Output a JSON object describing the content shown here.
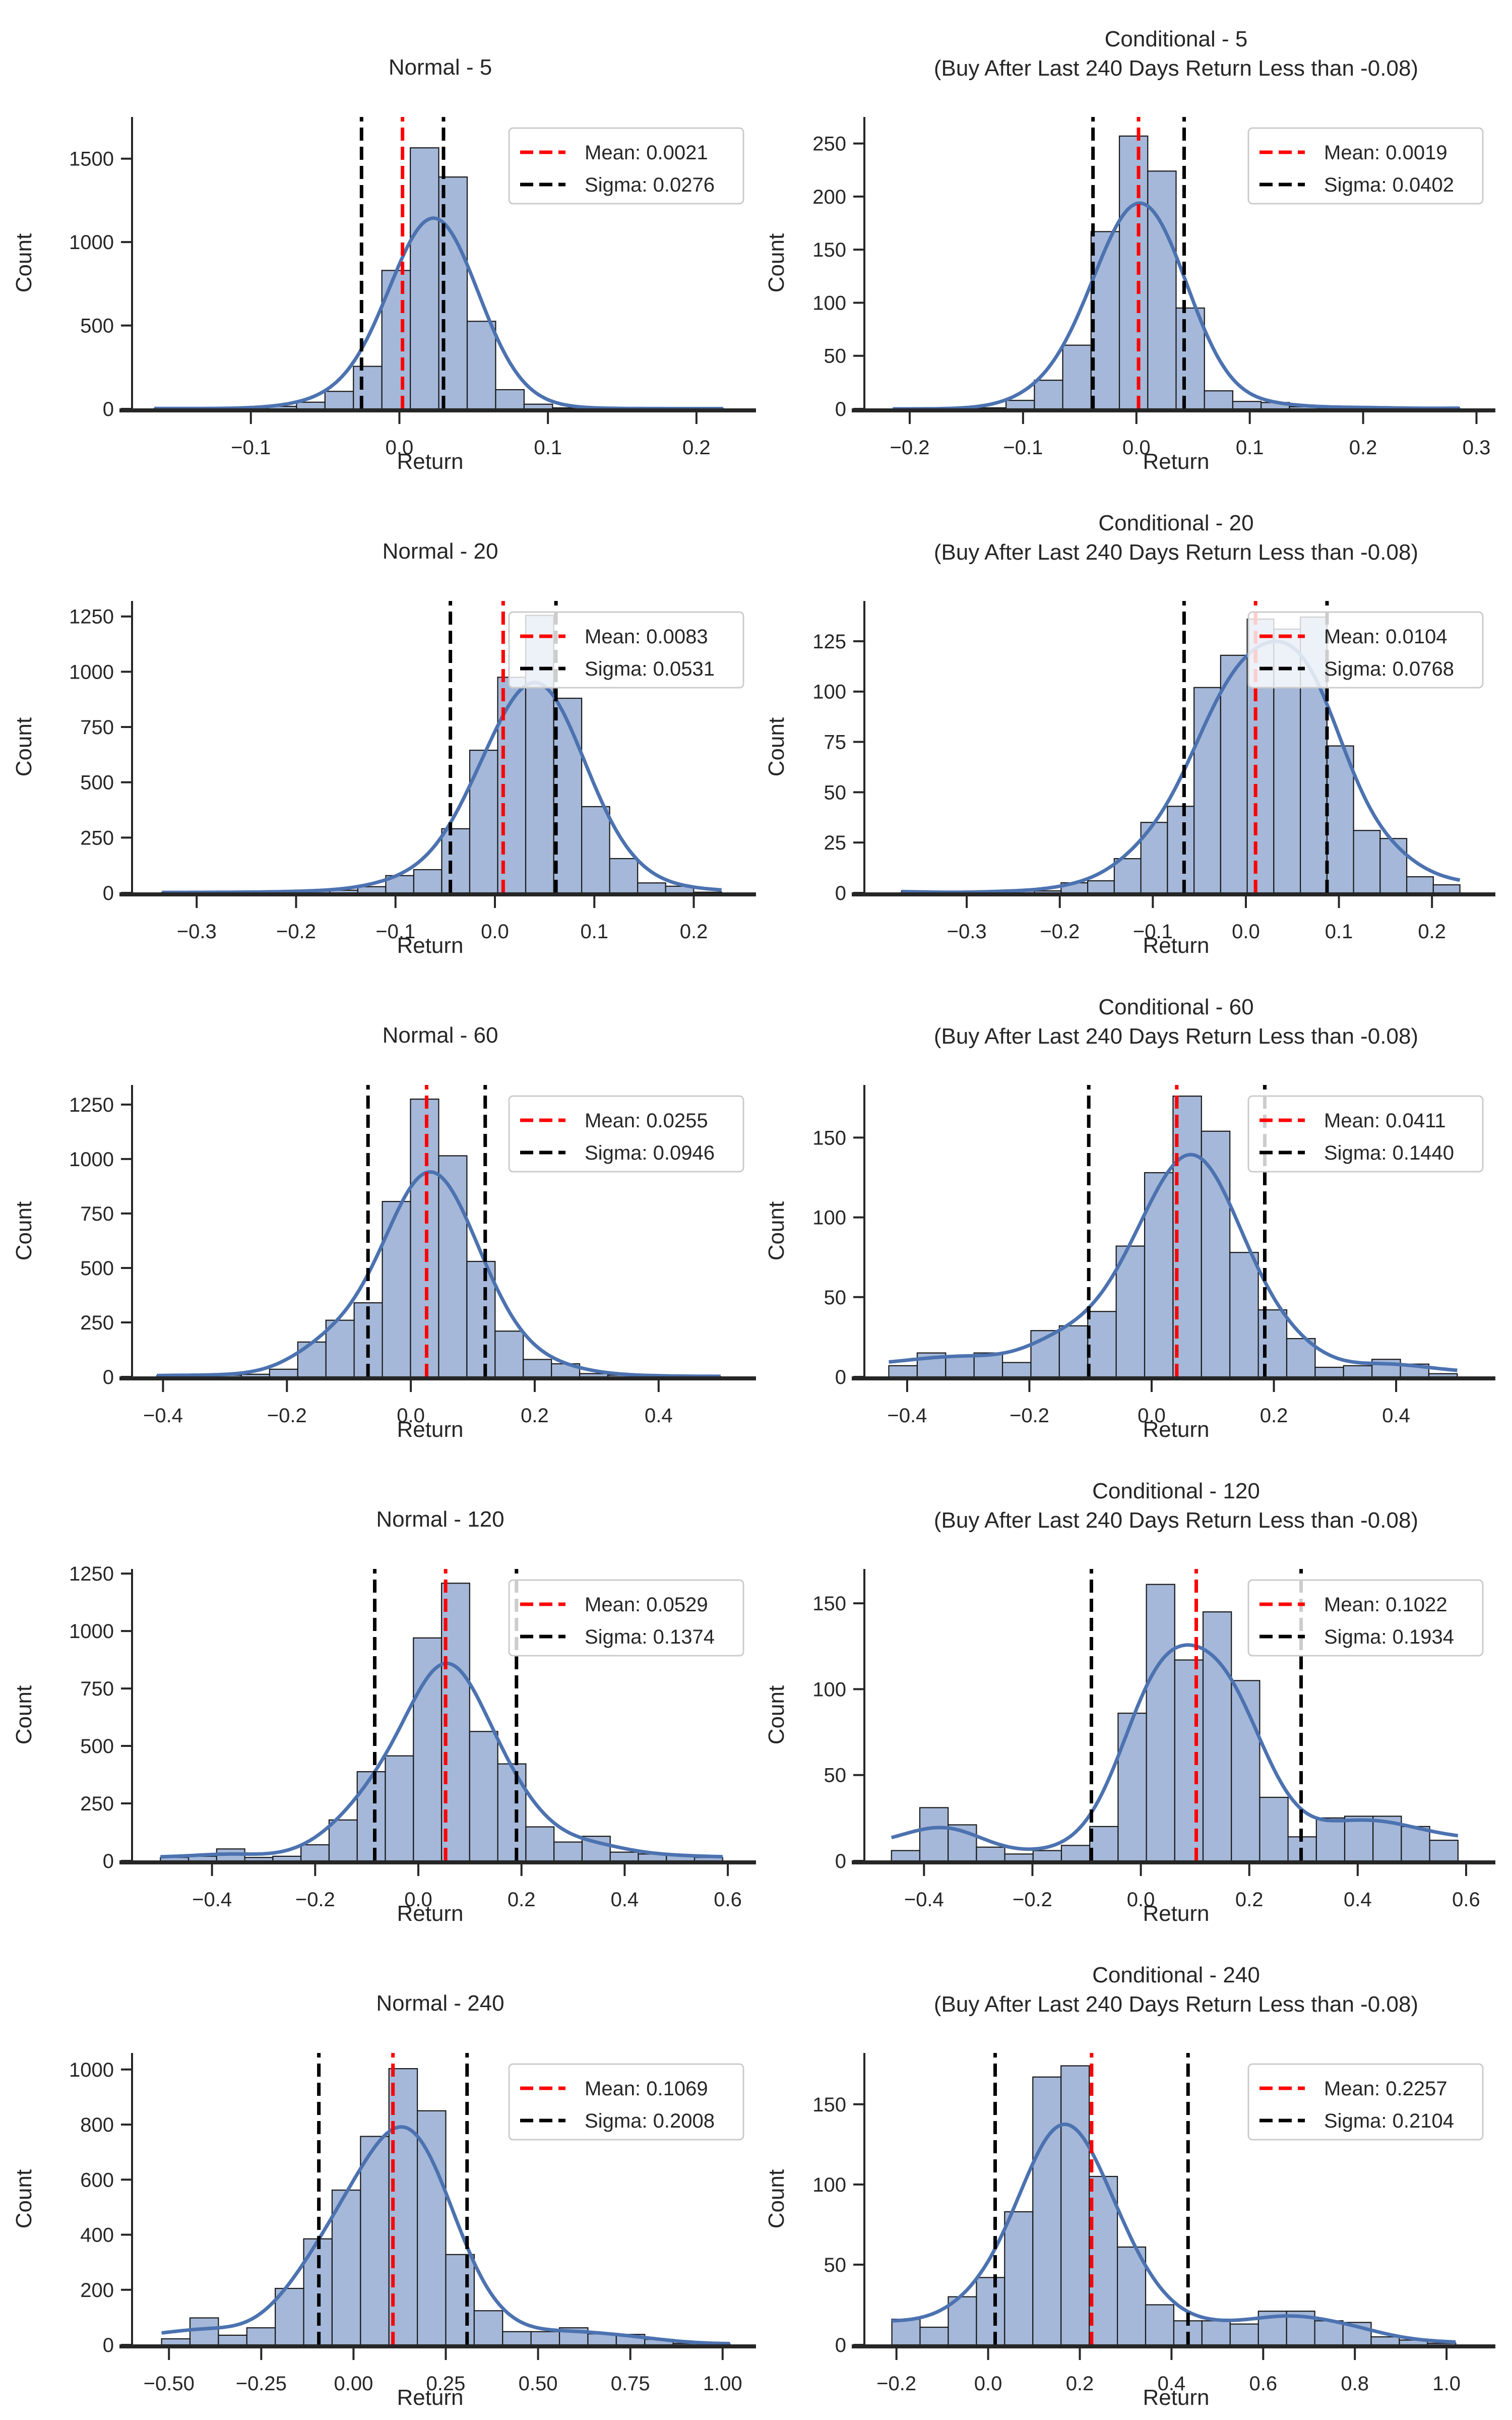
{
  "figure": {
    "colors": {
      "bar_fill": "#a5b8d9",
      "bar_edge": "#1a1a1a",
      "kde": "#4c72b0",
      "mean_line": "#ff0000",
      "sigma_line": "#000000",
      "axis": "#262626"
    }
  },
  "chart_data": [
    {
      "type": "bar",
      "title": "Normal - 5",
      "xlabel": "Return",
      "ylabel": "Count",
      "xlim": [
        -0.18,
        0.235
      ],
      "ylim": [
        0,
        1750
      ],
      "xticks": [
        -0.1,
        0.0,
        0.1,
        0.2
      ],
      "xtick_labels": [
        "−0.1",
        "0.0",
        "0.1",
        "0.2"
      ],
      "yticks": [
        0,
        500,
        1000,
        1500
      ],
      "ytick_labels": [
        "0",
        "500",
        "1000",
        "1500"
      ],
      "bin_range": [
        -0.165,
        0.218
      ],
      "counts": [
        3,
        2,
        2,
        3,
        15,
        40,
        105,
        255,
        830,
        1565,
        1390,
        525,
        115,
        28,
        6,
        3,
        2,
        2,
        1,
        2
      ],
      "mean": 0.0021,
      "sigma": 0.0276,
      "legend": [
        "Mean: 0.0021",
        "Sigma: 0.0276"
      ],
      "legend_position": "top-right"
    },
    {
      "type": "bar",
      "title": "Conditional - 5",
      "subtitle": "(Buy After Last 240 Days Return Less than -0.08)",
      "xlabel": "Return",
      "ylabel": "Count",
      "xlim": [
        -0.24,
        0.31
      ],
      "ylim": [
        0,
        275
      ],
      "xticks": [
        -0.2,
        -0.1,
        0.0,
        0.1,
        0.2,
        0.3
      ],
      "xtick_labels": [
        "−0.2",
        "−0.1",
        "0.0",
        "0.1",
        "0.2",
        "0.3"
      ],
      "yticks": [
        0,
        50,
        100,
        150,
        200,
        250
      ],
      "ytick_labels": [
        "0",
        "50",
        "100",
        "150",
        "200",
        "250"
      ],
      "bin_range": [
        -0.215,
        0.285
      ],
      "counts": [
        0,
        0,
        0,
        1,
        8,
        27,
        60,
        167,
        257,
        224,
        95,
        17,
        7,
        6,
        2,
        1,
        2,
        1,
        0,
        1
      ],
      "mean": 0.0019,
      "sigma": 0.0402,
      "legend": [
        "Mean: 0.0019",
        "Sigma: 0.0402"
      ],
      "legend_position": "top-right"
    },
    {
      "type": "bar",
      "title": "Normal - 20",
      "xlabel": "Return",
      "ylabel": "Count",
      "xlim": [
        -0.365,
        0.255
      ],
      "ylim": [
        0,
        1320
      ],
      "xticks": [
        -0.3,
        -0.2,
        -0.1,
        0.0,
        0.1,
        0.2
      ],
      "xtick_labels": [
        "−0.3",
        "−0.2",
        "−0.1",
        "0.0",
        "0.1",
        "0.2"
      ],
      "yticks": [
        0,
        250,
        500,
        750,
        1000,
        1250
      ],
      "ytick_labels": [
        "0",
        "250",
        "500",
        "750",
        "1000",
        "1250"
      ],
      "bin_range": [
        -0.335,
        0.228
      ],
      "counts": [
        2,
        2,
        3,
        4,
        5,
        10,
        12,
        28,
        78,
        105,
        290,
        645,
        975,
        1255,
        880,
        390,
        155,
        45,
        30,
        3
      ],
      "mean": 0.0083,
      "sigma": 0.0531,
      "legend": [
        "Mean: 0.0083",
        "Sigma: 0.0531"
      ],
      "legend_position": "top-right"
    },
    {
      "type": "bar",
      "title": "Conditional - 20",
      "subtitle": "(Buy After Last 240 Days Return Less than -0.08)",
      "xlabel": "Return",
      "ylabel": "Count",
      "xlim": [
        -0.41,
        0.26
      ],
      "ylim": [
        0,
        145
      ],
      "xticks": [
        -0.3,
        -0.2,
        -0.1,
        0.0,
        0.1,
        0.2
      ],
      "xtick_labels": [
        "−0.3",
        "−0.2",
        "−0.1",
        "0.0",
        "0.1",
        "0.2"
      ],
      "yticks": [
        0,
        25,
        50,
        75,
        100,
        125
      ],
      "ytick_labels": [
        "0",
        "25",
        "50",
        "75",
        "100",
        "125"
      ],
      "bin_range": [
        -0.37,
        0.23
      ],
      "counts": [
        1,
        0,
        0,
        1,
        1,
        1,
        5,
        6,
        17,
        35,
        43,
        102,
        118,
        136,
        131,
        137,
        73,
        31,
        27,
        8,
        4
      ],
      "mean": 0.0104,
      "sigma": 0.0768,
      "legend": [
        "Mean: 0.0104",
        "Sigma: 0.0768"
      ],
      "legend_position": "top-right"
    },
    {
      "type": "bar",
      "title": "Normal - 60",
      "xlabel": "Return",
      "ylabel": "Count",
      "xlim": [
        -0.45,
        0.545
      ],
      "ylim": [
        0,
        1340
      ],
      "xticks": [
        -0.4,
        -0.2,
        0.0,
        0.2,
        0.4
      ],
      "xtick_labels": [
        "−0.4",
        "−0.2",
        "0.0",
        "0.2",
        "0.4"
      ],
      "yticks": [
        0,
        250,
        500,
        750,
        1000,
        1250
      ],
      "ytick_labels": [
        "0",
        "250",
        "500",
        "750",
        "1000",
        "1250"
      ],
      "bin_range": [
        -0.41,
        0.5
      ],
      "counts": [
        5,
        10,
        8,
        12,
        35,
        160,
        260,
        340,
        805,
        1275,
        1015,
        530,
        210,
        80,
        60,
        15,
        8,
        6,
        3,
        2
      ],
      "mean": 0.0255,
      "sigma": 0.0946,
      "legend": [
        "Mean: 0.0255",
        "Sigma: 0.0946"
      ],
      "legend_position": "top-right"
    },
    {
      "type": "bar",
      "title": "Conditional - 60",
      "subtitle": "(Buy After Last 240 Days Return Less than -0.08)",
      "xlabel": "Return",
      "ylabel": "Count",
      "xlim": [
        -0.47,
        0.55
      ],
      "ylim": [
        0,
        183
      ],
      "xticks": [
        -0.4,
        -0.2,
        0.0,
        0.2,
        0.4
      ],
      "xtick_labels": [
        "−0.4",
        "−0.2",
        "0.0",
        "0.2",
        "0.4"
      ],
      "yticks": [
        0,
        50,
        100,
        150
      ],
      "ytick_labels": [
        "0",
        "50",
        "100",
        "150"
      ],
      "bin_range": [
        -0.43,
        0.5
      ],
      "counts": [
        7,
        15,
        13,
        15,
        9,
        29,
        32,
        41,
        82,
        128,
        176,
        154,
        78,
        42,
        24,
        6,
        7,
        11,
        8,
        2
      ],
      "mean": 0.0411,
      "sigma": 0.144,
      "legend": [
        "Mean: 0.0411",
        "Sigma: 0.1440"
      ],
      "legend_position": "top-right"
    },
    {
      "type": "bar",
      "title": "Normal - 120",
      "xlabel": "Return",
      "ylabel": "Count",
      "xlim": [
        -0.555,
        0.64
      ],
      "ylim": [
        0,
        1270
      ],
      "xticks": [
        -0.4,
        -0.2,
        0.0,
        0.2,
        0.4,
        0.6
      ],
      "xtick_labels": [
        "−0.4",
        "−0.2",
        "0.0",
        "0.2",
        "0.4",
        "0.6"
      ],
      "yticks": [
        0,
        250,
        500,
        750,
        1000,
        1250
      ],
      "ytick_labels": [
        "0",
        "250",
        "500",
        "750",
        "1000",
        "1250"
      ],
      "bin_range": [
        -0.5,
        0.59
      ],
      "counts": [
        15,
        20,
        52,
        15,
        20,
        70,
        178,
        388,
        457,
        970,
        1208,
        563,
        422,
        148,
        82,
        107,
        38,
        30,
        25,
        15
      ],
      "mean": 0.0529,
      "sigma": 0.1374,
      "legend": [
        "Mean: 0.0529",
        "Sigma: 0.1374"
      ],
      "legend_position": "top-right"
    },
    {
      "type": "bar",
      "title": "Conditional - 120",
      "subtitle": "(Buy After Last 240 Days Return Less than -0.08)",
      "xlabel": "Return",
      "ylabel": "Count",
      "xlim": [
        -0.51,
        0.64
      ],
      "ylim": [
        0,
        170
      ],
      "xticks": [
        -0.4,
        -0.2,
        0.0,
        0.2,
        0.4,
        0.6
      ],
      "xtick_labels": [
        "−0.4",
        "−0.2",
        "0.0",
        "0.2",
        "0.4",
        "0.6"
      ],
      "yticks": [
        0,
        50,
        100,
        150
      ],
      "ytick_labels": [
        "0",
        "50",
        "100",
        "150"
      ],
      "bin_range": [
        -0.46,
        0.585
      ],
      "counts": [
        6,
        31,
        21,
        8,
        4,
        6,
        9,
        20,
        86,
        161,
        117,
        145,
        105,
        37,
        14,
        25,
        26,
        26,
        20,
        12
      ],
      "mean": 0.1022,
      "sigma": 0.1934,
      "legend": [
        "Mean: 0.1022",
        "Sigma: 0.1934"
      ],
      "legend_position": "top-right"
    },
    {
      "type": "bar",
      "title": "Normal - 240",
      "xlabel": "Return",
      "ylabel": "Count",
      "xlim": [
        -0.6,
        1.07
      ],
      "ylim": [
        0,
        1060
      ],
      "xticks": [
        -0.5,
        -0.25,
        0.0,
        0.25,
        0.5,
        0.75,
        1.0
      ],
      "xtick_labels": [
        "−0.50",
        "−0.25",
        "0.00",
        "0.25",
        "0.50",
        "0.75",
        "1.00"
      ],
      "yticks": [
        0,
        200,
        400,
        600,
        800,
        1000
      ],
      "ytick_labels": [
        "0",
        "200",
        "400",
        "600",
        "800",
        "1000"
      ],
      "bin_range": [
        -0.52,
        1.02
      ],
      "counts": [
        22,
        98,
        35,
        62,
        205,
        385,
        562,
        757,
        1003,
        850,
        328,
        124,
        48,
        48,
        62,
        40,
        38,
        20,
        5,
        3
      ],
      "mean": 0.1069,
      "sigma": 0.2008,
      "legend": [
        "Mean: 0.1069",
        "Sigma: 0.2008"
      ],
      "legend_position": "top-right"
    },
    {
      "type": "bar",
      "title": "Conditional - 240",
      "subtitle": "(Buy After Last 240 Days Return Less than -0.08)",
      "xlabel": "Return",
      "ylabel": "Count",
      "xlim": [
        -0.27,
        1.09
      ],
      "ylim": [
        0,
        182
      ],
      "xticks": [
        -0.2,
        0.0,
        0.2,
        0.4,
        0.6,
        0.8,
        1.0
      ],
      "xtick_labels": [
        "−0.2",
        "0.0",
        "0.2",
        "0.4",
        "0.6",
        "0.8",
        "1.0"
      ],
      "yticks": [
        0,
        50,
        100,
        150
      ],
      "ytick_labels": [
        "0",
        "50",
        "100",
        "150"
      ],
      "bin_range": [
        -0.21,
        1.02
      ],
      "counts": [
        16,
        11,
        30,
        42,
        83,
        167,
        174,
        105,
        61,
        25,
        15,
        15,
        13,
        21,
        21,
        15,
        14,
        5,
        3,
        1
      ],
      "mean": 0.2257,
      "sigma": 0.2104,
      "legend": [
        "Mean: 0.2257",
        "Sigma: 0.2104"
      ],
      "legend_position": "top-right"
    }
  ]
}
